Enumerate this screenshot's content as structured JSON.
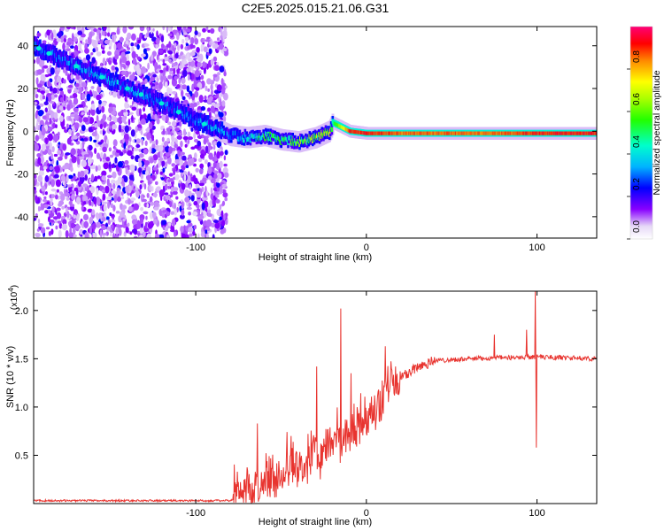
{
  "title": "C2E5.2025.015.21.06.G31",
  "chart_data": [
    {
      "type": "heatmap",
      "xlabel": "Height of straight line (km)",
      "ylabel": "Frequency (Hz)",
      "xlim": [
        -195,
        135
      ],
      "ylim": [
        -50,
        49
      ],
      "x_ticks": [
        -100,
        0,
        100
      ],
      "x_tick_labels": [
        "-100",
        "0",
        "100"
      ],
      "y_ticks": [
        -40,
        -20,
        0,
        20,
        40
      ],
      "y_tick_labels": [
        "-40",
        "-20",
        "0",
        "20",
        "40"
      ],
      "grid": false,
      "colorbar": {
        "label": "Normalized spectral amplitude",
        "range": [
          0,
          1
        ],
        "ticks": [
          0.0,
          0.2,
          0.4,
          0.6,
          0.8
        ],
        "tick_labels": [
          "0.0",
          "0.2",
          "0.4",
          "0.6",
          "0.8"
        ]
      },
      "ridge": {
        "x": [
          -195,
          -180,
          -160,
          -140,
          -120,
          -100,
          -88,
          -80,
          -70,
          -60,
          -50,
          -40,
          -30,
          -22,
          -20,
          -10,
          0,
          20,
          50,
          80,
          100,
          135
        ],
        "freq": [
          40,
          34,
          27,
          20,
          13,
          5,
          1,
          -2,
          -3,
          -2,
          -4,
          -5,
          -3,
          0,
          4,
          0,
          -1,
          -1,
          -1,
          -1,
          -1,
          -1
        ],
        "amplitude": [
          0.3,
          0.3,
          0.35,
          0.35,
          0.3,
          0.3,
          0.35,
          0.3,
          0.4,
          0.5,
          0.5,
          0.6,
          0.6,
          0.7,
          0.5,
          0.95,
          0.95,
          0.9,
          0.9,
          0.9,
          0.95,
          0.95
        ]
      }
    },
    {
      "type": "line",
      "xlabel": "Height of straight line (km)",
      "ylabel": "SNR (10 * v/v)",
      "multiplier_label": "(x10",
      "multiplier_exp": "4",
      "multiplier_close": ")",
      "xlim": [
        -195,
        135
      ],
      "ylim": [
        0,
        2.2
      ],
      "x_ticks": [
        -100,
        0,
        100
      ],
      "x_tick_labels": [
        "-100",
        "0",
        "100"
      ],
      "y_ticks": [
        0.5,
        1.0,
        1.5,
        2.0
      ],
      "y_tick_labels": [
        "0.5",
        "1.0",
        "1.5",
        "2.0"
      ],
      "grid": false,
      "color": "#e8342f",
      "envelope": {
        "x": [
          -195,
          -80,
          -72,
          -60,
          -50,
          -40,
          -30,
          -25,
          -20,
          -12,
          -5,
          0,
          10,
          20,
          30,
          40,
          60,
          100,
          135
        ],
        "snr": [
          0.03,
          0.03,
          0.08,
          0.2,
          0.3,
          0.38,
          0.5,
          0.52,
          0.6,
          0.62,
          0.75,
          0.85,
          1.1,
          1.3,
          1.42,
          1.48,
          1.5,
          1.52,
          1.5
        ]
      },
      "spikes": [
        {
          "x": -64,
          "snr": 0.83
        },
        {
          "x": -44,
          "snr": 0.7
        },
        {
          "x": -29,
          "snr": 1.42
        },
        {
          "x": -15,
          "snr": 2.02
        },
        {
          "x": -9,
          "snr": 1.35
        },
        {
          "x": 75,
          "snr": 1.75
        },
        {
          "x": 94,
          "snr": 1.8
        },
        {
          "x": 99,
          "snr": 2.2
        },
        {
          "x": 99.5,
          "snr": 0.58
        }
      ]
    }
  ]
}
